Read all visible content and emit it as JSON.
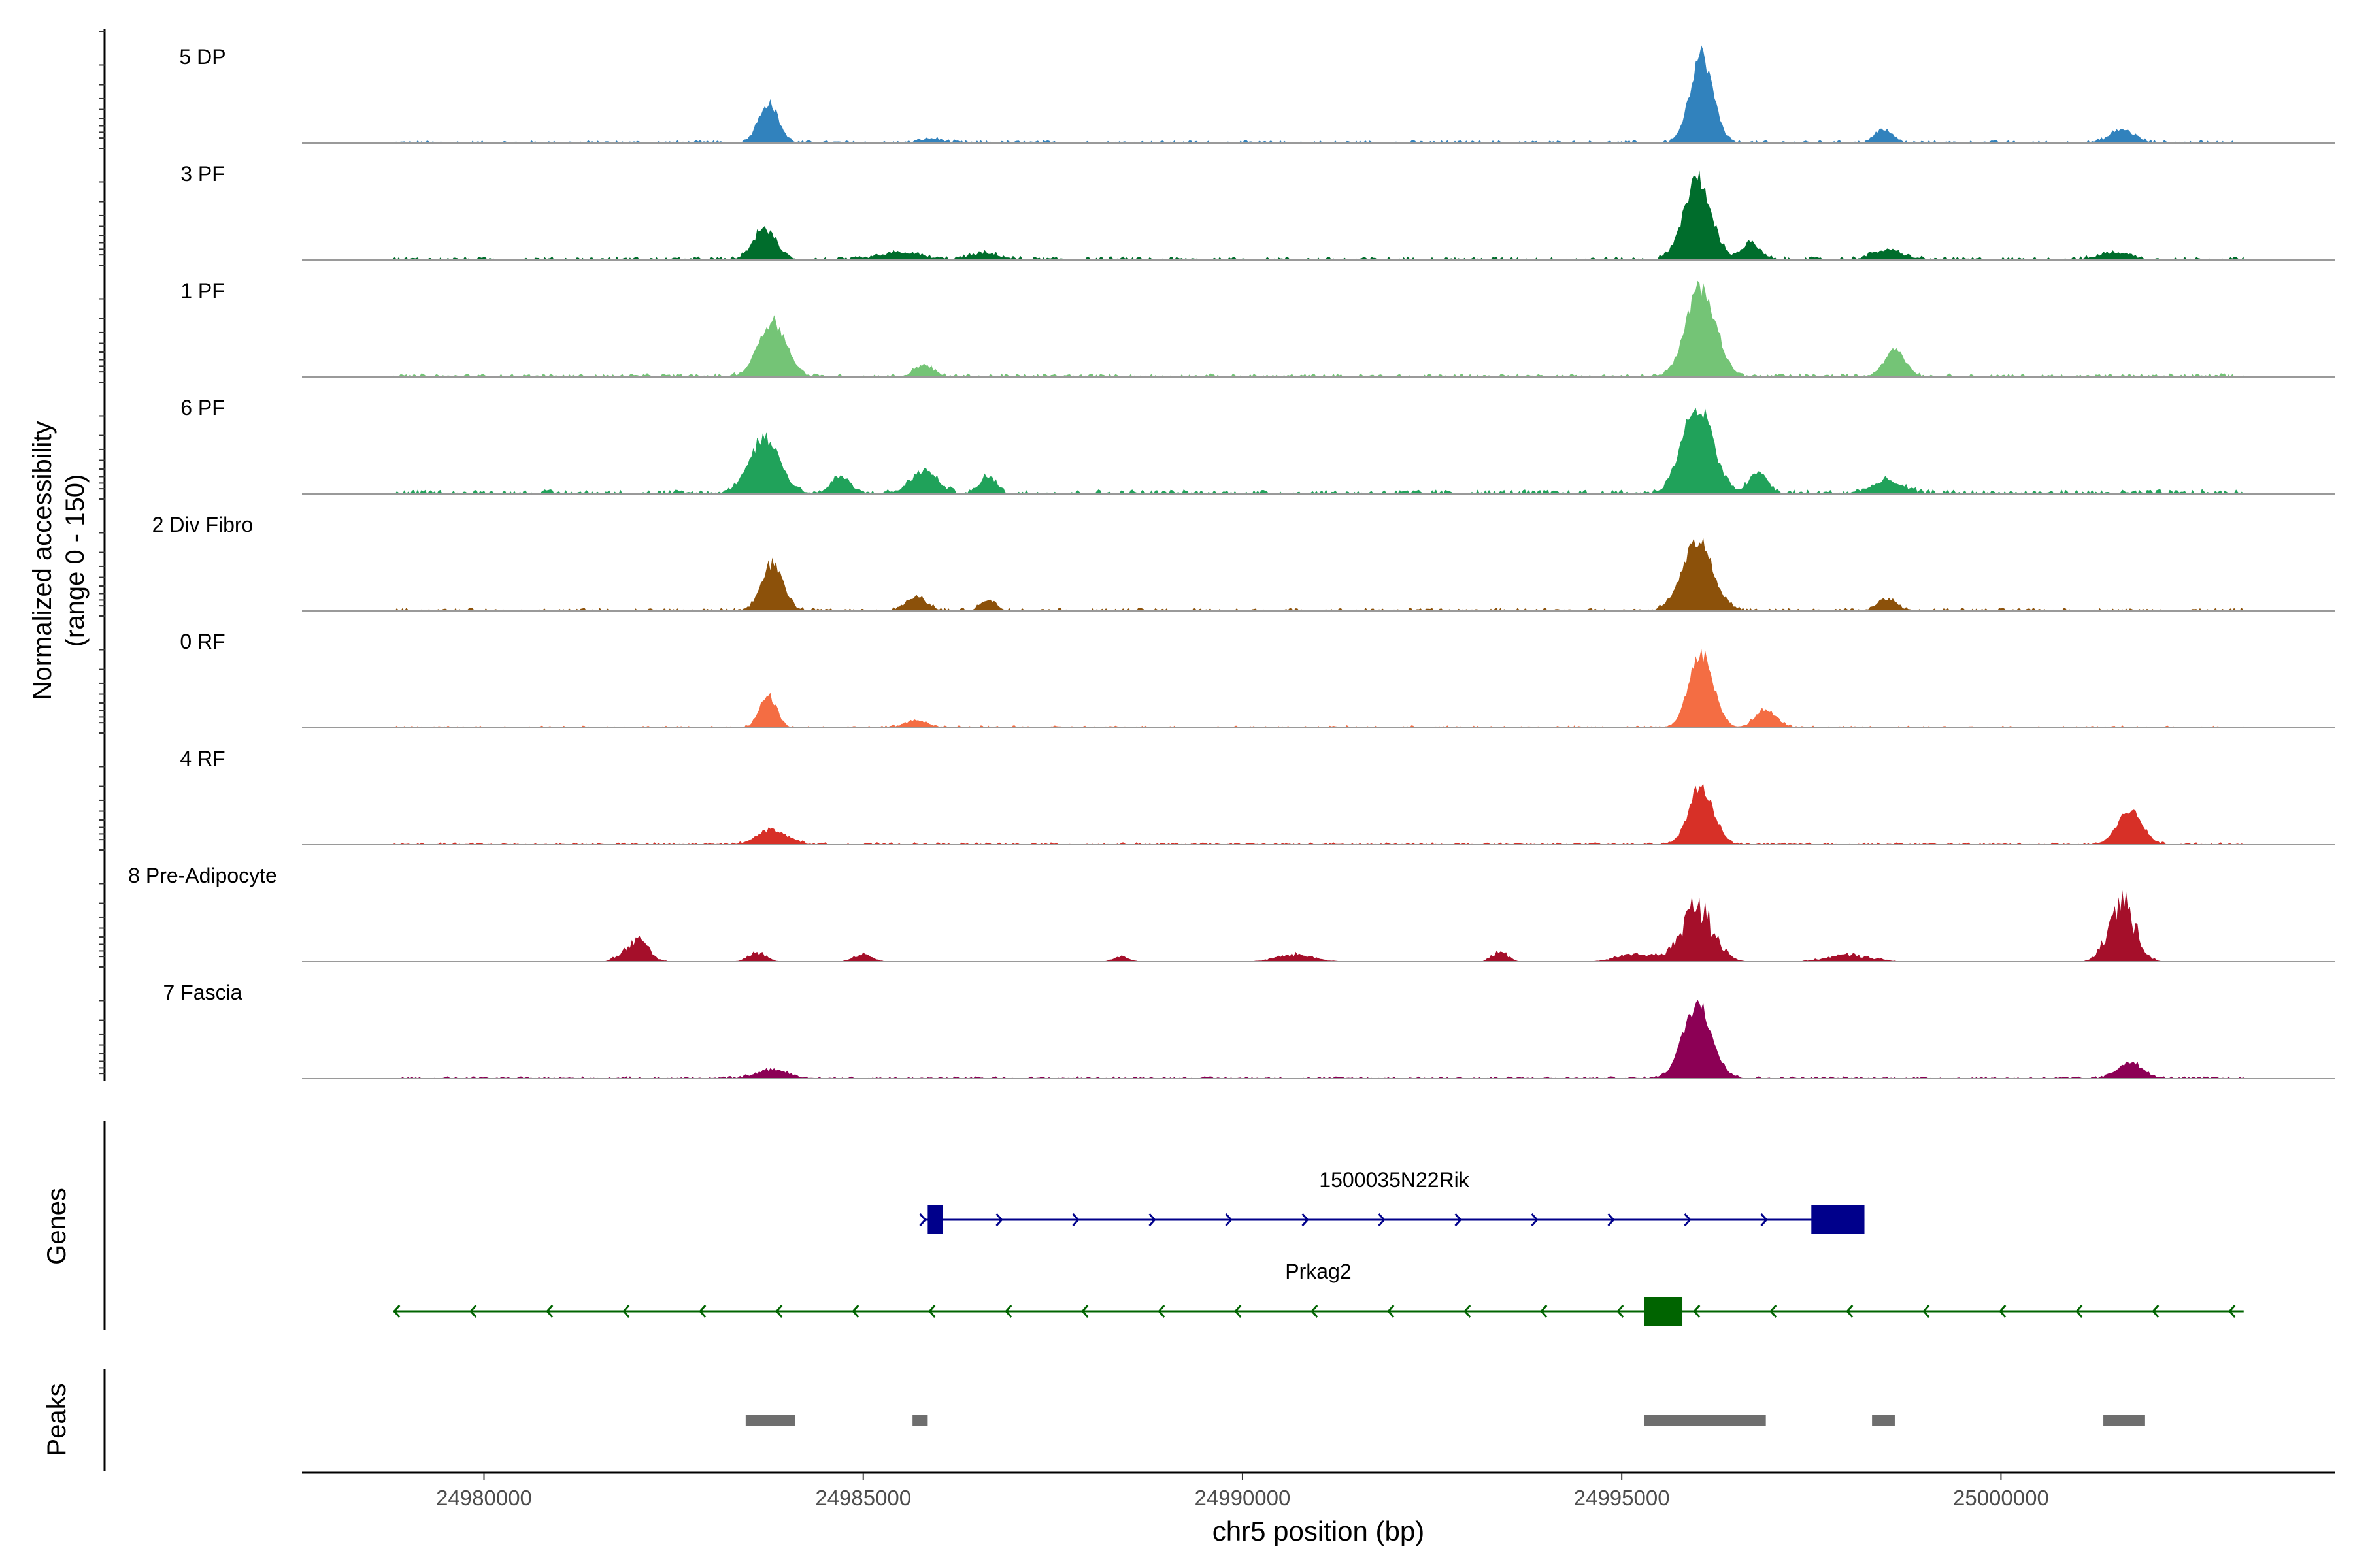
{
  "chart_data": {
    "type": "area",
    "title": "",
    "ylabel": "Normalized accessibility",
    "ylabel_range": "(range 0 - 150)",
    "xlabel": "chr5 position (bp)",
    "xlim": [
      24977600,
      25004400
    ],
    "ylim": [
      0,
      150
    ],
    "x_ticks": [
      24980000,
      24985000,
      24990000,
      24995000,
      25000000
    ],
    "x_tick_labels": [
      "24980000",
      "24985000",
      "24990000",
      "24995000",
      "25000000"
    ],
    "track_range": [
      24978800,
      25003200
    ],
    "series": [
      {
        "name": "5 DP",
        "color": "#3182bd",
        "peaks": [
          [
            24983750,
            68,
            130
          ],
          [
            24985900,
            7,
            140
          ],
          [
            24996050,
            150,
            150
          ],
          [
            24998450,
            24,
            110
          ],
          [
            25001600,
            22,
            160
          ]
        ],
        "background": 5
      },
      {
        "name": "3 PF",
        "color": "#006d2c",
        "peaks": [
          [
            24983700,
            52,
            150
          ],
          [
            24985500,
            12,
            250
          ],
          [
            24986600,
            10,
            200
          ],
          [
            24996000,
            138,
            180
          ],
          [
            24996700,
            28,
            120
          ],
          [
            24998500,
            16,
            200
          ],
          [
            25001500,
            12,
            200
          ]
        ],
        "background": 6
      },
      {
        "name": "1 PF",
        "color": "#74c476",
        "peaks": [
          [
            24983800,
            96,
            180
          ],
          [
            24985800,
            20,
            120
          ],
          [
            24996050,
            155,
            190
          ],
          [
            24998600,
            45,
            140
          ]
        ],
        "background": 6
      },
      {
        "name": "6 PF",
        "color": "#20a25a",
        "peaks": [
          [
            24983700,
            95,
            200
          ],
          [
            24984700,
            28,
            120
          ],
          [
            24985800,
            38,
            170
          ],
          [
            24986650,
            30,
            100
          ],
          [
            24996000,
            150,
            200
          ],
          [
            24996800,
            35,
            120
          ],
          [
            24998500,
            20,
            200
          ]
        ],
        "background": 8
      },
      {
        "name": "2 Div Fibro",
        "color": "#8c510a",
        "peaks": [
          [
            24983800,
            80,
            140
          ],
          [
            24985700,
            22,
            140
          ],
          [
            24986650,
            18,
            100
          ],
          [
            24996000,
            120,
            200
          ],
          [
            24998500,
            20,
            120
          ]
        ],
        "background": 5
      },
      {
        "name": "0 RF",
        "color": "#f46d43",
        "peaks": [
          [
            24983750,
            55,
            110
          ],
          [
            24985700,
            12,
            150
          ],
          [
            24996050,
            125,
            160
          ],
          [
            24996900,
            30,
            140
          ]
        ],
        "background": 4
      },
      {
        "name": "4 RF",
        "color": "#d73027",
        "peaks": [
          [
            24983800,
            25,
            200
          ],
          [
            24996050,
            98,
            160
          ],
          [
            25001700,
            58,
            160
          ]
        ],
        "background": 4
      },
      {
        "name": "8 Pre-Adipocyte",
        "color": "#a50f2a",
        "peaks": [
          [
            24982000,
            45,
            160
          ],
          [
            24983600,
            20,
            120
          ],
          [
            24985000,
            18,
            120
          ],
          [
            24988400,
            12,
            100
          ],
          [
            24990700,
            16,
            250
          ],
          [
            24993400,
            25,
            100
          ],
          [
            24995200,
            18,
            250
          ],
          [
            24996000,
            118,
            210
          ],
          [
            24998000,
            15,
            300
          ],
          [
            25001600,
            130,
            170
          ]
        ],
        "background": 0
      },
      {
        "name": "7 Fascia",
        "color": "#8c0055",
        "peaks": [
          [
            24983800,
            15,
            200
          ],
          [
            24996000,
            128,
            190
          ],
          [
            25001700,
            28,
            160
          ]
        ],
        "background": 4
      }
    ],
    "genes": [
      {
        "name": "1500035N22Rik",
        "strand": "+",
        "color": "#00008b",
        "start": 24985800,
        "end": 24998200,
        "exons": [
          [
            24985850,
            24986050
          ],
          [
            24997500,
            24998200
          ]
        ]
      },
      {
        "name": "Prkag2",
        "strand": "-",
        "color": "#006400",
        "start": 24978800,
        "end": 25003200,
        "exons": [
          [
            24995300,
            24995800
          ]
        ]
      }
    ],
    "peak_regions": [
      [
        24983450,
        24984100
      ],
      [
        24985650,
        24985850
      ],
      [
        24995300,
        24996900
      ],
      [
        24998300,
        24998600
      ],
      [
        25001350,
        25001900
      ]
    ],
    "panel_labels": {
      "genes": "Genes",
      "peaks": "Peaks"
    },
    "grid": false
  }
}
